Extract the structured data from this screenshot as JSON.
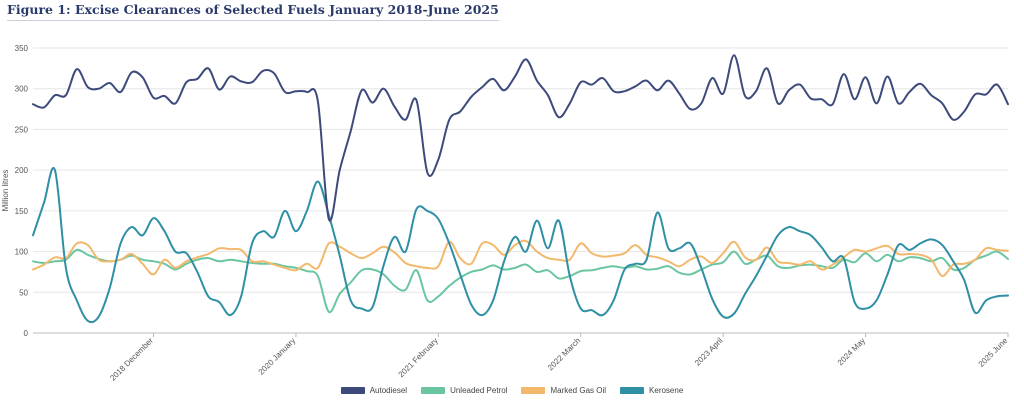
{
  "title": "Figure 1: Excise Clearances of Selected Fuels January 2018-June 2025",
  "chart_data": {
    "type": "line",
    "ylabel": "Million litres",
    "ylim": [
      0,
      350
    ],
    "yticks": [
      0,
      50,
      100,
      150,
      200,
      250,
      300,
      350
    ],
    "xlim": [
      0,
      89
    ],
    "xticks": [
      {
        "index": 11,
        "label": "2018 December"
      },
      {
        "index": 24,
        "label": "2020 January"
      },
      {
        "index": 37,
        "label": "2021 February"
      },
      {
        "index": 50,
        "label": "2022 March"
      },
      {
        "index": 63,
        "label": "2023 April"
      },
      {
        "index": 76,
        "label": "2024 May"
      },
      {
        "index": 89,
        "label": "2025 June"
      }
    ],
    "series": [
      {
        "name": "Autodiesel",
        "color": "#3d4a7c",
        "values": [
          281,
          277,
          292,
          292,
          324,
          302,
          300,
          307,
          296,
          320,
          314,
          289,
          291,
          282,
          308,
          312,
          325,
          299,
          315,
          309,
          308,
          322,
          319,
          296,
          297,
          296,
          285,
          140,
          200,
          248,
          298,
          283,
          300,
          278,
          262,
          286,
          197,
          213,
          262,
          272,
          290,
          302,
          312,
          298,
          315,
          336,
          310,
          292,
          265,
          282,
          308,
          305,
          313,
          297,
          297,
          303,
          310,
          298,
          310,
          294,
          275,
          282,
          313,
          294,
          341,
          291,
          297,
          325,
          282,
          298,
          305,
          288,
          287,
          281,
          318,
          287,
          314,
          282,
          315,
          282,
          296,
          306,
          292,
          282,
          262,
          272,
          293,
          293,
          305,
          281
        ]
      },
      {
        "name": "Unleaded Petrol",
        "color": "#6ac6a0",
        "values": [
          88,
          86,
          88,
          90,
          102,
          96,
          91,
          88,
          90,
          95,
          90,
          88,
          85,
          78,
          85,
          90,
          92,
          88,
          90,
          88,
          86,
          85,
          85,
          82,
          80,
          76,
          70,
          26,
          48,
          62,
          77,
          78,
          72,
          58,
          53,
          77,
          40,
          45,
          58,
          68,
          75,
          78,
          83,
          78,
          80,
          84,
          75,
          77,
          67,
          70,
          76,
          77,
          80,
          82,
          80,
          82,
          78,
          79,
          82,
          74,
          72,
          78,
          84,
          87,
          100,
          85,
          90,
          95,
          82,
          80,
          83,
          84,
          82,
          80,
          90,
          87,
          98,
          88,
          96,
          88,
          93,
          92,
          88,
          92,
          78,
          80,
          90,
          95,
          100,
          91
        ]
      },
      {
        "name": "Marked Gas Oil",
        "color": "#f2b96d",
        "values": [
          78,
          84,
          93,
          92,
          110,
          108,
          90,
          88,
          90,
          97,
          85,
          72,
          90,
          80,
          88,
          93,
          97,
          104,
          103,
          102,
          88,
          88,
          84,
          80,
          77,
          85,
          80,
          110,
          106,
          98,
          92,
          98,
          106,
          99,
          86,
          82,
          80,
          82,
          112,
          92,
          85,
          110,
          108,
          96,
          108,
          113,
          100,
          92,
          90,
          90,
          110,
          98,
          94,
          95,
          98,
          108,
          96,
          93,
          88,
          82,
          90,
          94,
          86,
          98,
          112,
          93,
          90,
          105,
          88,
          86,
          84,
          88,
          78,
          84,
          93,
          102,
          100,
          104,
          107,
          97,
          97,
          96,
          90,
          70,
          84,
          85,
          90,
          104,
          102,
          101
        ]
      },
      {
        "name": "Kerosene",
        "color": "#2e8fa5",
        "values": [
          120,
          160,
          200,
          80,
          40,
          15,
          20,
          55,
          110,
          130,
          120,
          141,
          125,
          100,
          98,
          75,
          45,
          38,
          22,
          45,
          110,
          125,
          118,
          150,
          125,
          150,
          186,
          145,
          95,
          40,
          30,
          32,
          83,
          118,
          100,
          152,
          150,
          140,
          110,
          72,
          35,
          22,
          40,
          88,
          118,
          100,
          138,
          104,
          138,
          70,
          30,
          28,
          22,
          40,
          78,
          85,
          90,
          148,
          104,
          104,
          110,
          80,
          42,
          20,
          24,
          48,
          70,
          95,
          120,
          130,
          125,
          120,
          105,
          88,
          92,
          38,
          30,
          40,
          72,
          108,
          102,
          110,
          115,
          108,
          88,
          65,
          25,
          40,
          45,
          46
        ]
      }
    ]
  },
  "legend": [
    "Autodiesel",
    "Unleaded Petrol",
    "Marked Gas Oil",
    "Kerosene"
  ]
}
